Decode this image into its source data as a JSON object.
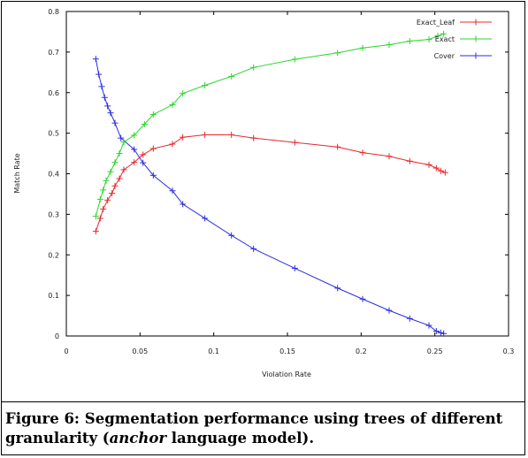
{
  "caption": {
    "label": "Figure 6:",
    "text_before": "Segmentation performance using trees of different granularity (",
    "emph": "anchor",
    "text_after": " language model)."
  },
  "chart_data": {
    "type": "line",
    "title": "",
    "xlabel": "Violation Rate",
    "ylabel": "Match Rate",
    "xlim": [
      0,
      0.3
    ],
    "ylim": [
      0,
      0.8
    ],
    "xticks": [
      "0",
      "0.05",
      "0.1",
      "0.15",
      "0.2",
      "0.25",
      "0.3"
    ],
    "yticks": [
      "0",
      "0.1",
      "0.2",
      "0.3",
      "0.4",
      "0.5",
      "0.6",
      "0.7",
      "0.8"
    ],
    "grid": false,
    "legend_position": "top-right",
    "series": [
      {
        "name": "Exact_Leaf",
        "color": "#e8282c",
        "points": [
          [
            0.02,
            0.258
          ],
          [
            0.023,
            0.29
          ],
          [
            0.025,
            0.313
          ],
          [
            0.028,
            0.335
          ],
          [
            0.031,
            0.352
          ],
          [
            0.033,
            0.37
          ],
          [
            0.036,
            0.388
          ],
          [
            0.039,
            0.41
          ],
          [
            0.046,
            0.428
          ],
          [
            0.052,
            0.447
          ],
          [
            0.059,
            0.462
          ],
          [
            0.072,
            0.473
          ],
          [
            0.079,
            0.49
          ],
          [
            0.094,
            0.496
          ],
          [
            0.112,
            0.496
          ],
          [
            0.127,
            0.488
          ],
          [
            0.155,
            0.477
          ],
          [
            0.184,
            0.466
          ],
          [
            0.201,
            0.452
          ],
          [
            0.219,
            0.443
          ],
          [
            0.233,
            0.431
          ],
          [
            0.246,
            0.422
          ],
          [
            0.251,
            0.414
          ],
          [
            0.254,
            0.407
          ],
          [
            0.257,
            0.403
          ]
        ]
      },
      {
        "name": "Exact",
        "color": "#2ad62c",
        "points": [
          [
            0.02,
            0.295
          ],
          [
            0.023,
            0.337
          ],
          [
            0.025,
            0.36
          ],
          [
            0.027,
            0.383
          ],
          [
            0.03,
            0.405
          ],
          [
            0.033,
            0.428
          ],
          [
            0.036,
            0.45
          ],
          [
            0.039,
            0.478
          ],
          [
            0.046,
            0.495
          ],
          [
            0.053,
            0.522
          ],
          [
            0.059,
            0.546
          ],
          [
            0.072,
            0.57
          ],
          [
            0.079,
            0.598
          ],
          [
            0.094,
            0.618
          ],
          [
            0.112,
            0.64
          ],
          [
            0.127,
            0.662
          ],
          [
            0.155,
            0.682
          ],
          [
            0.184,
            0.698
          ],
          [
            0.201,
            0.71
          ],
          [
            0.219,
            0.718
          ],
          [
            0.233,
            0.727
          ],
          [
            0.246,
            0.731
          ],
          [
            0.252,
            0.74
          ],
          [
            0.256,
            0.745
          ]
        ]
      },
      {
        "name": "Cover",
        "color": "#2a2ee0",
        "points": [
          [
            0.02,
            0.683
          ],
          [
            0.022,
            0.645
          ],
          [
            0.024,
            0.615
          ],
          [
            0.026,
            0.588
          ],
          [
            0.028,
            0.567
          ],
          [
            0.03,
            0.55
          ],
          [
            0.033,
            0.525
          ],
          [
            0.037,
            0.488
          ],
          [
            0.046,
            0.46
          ],
          [
            0.052,
            0.427
          ],
          [
            0.059,
            0.396
          ],
          [
            0.072,
            0.358
          ],
          [
            0.079,
            0.325
          ],
          [
            0.094,
            0.29
          ],
          [
            0.112,
            0.248
          ],
          [
            0.127,
            0.215
          ],
          [
            0.155,
            0.167
          ],
          [
            0.184,
            0.118
          ],
          [
            0.201,
            0.091
          ],
          [
            0.219,
            0.063
          ],
          [
            0.233,
            0.043
          ],
          [
            0.246,
            0.026
          ],
          [
            0.251,
            0.012
          ],
          [
            0.254,
            0.008
          ],
          [
            0.256,
            0.006
          ]
        ]
      }
    ]
  }
}
